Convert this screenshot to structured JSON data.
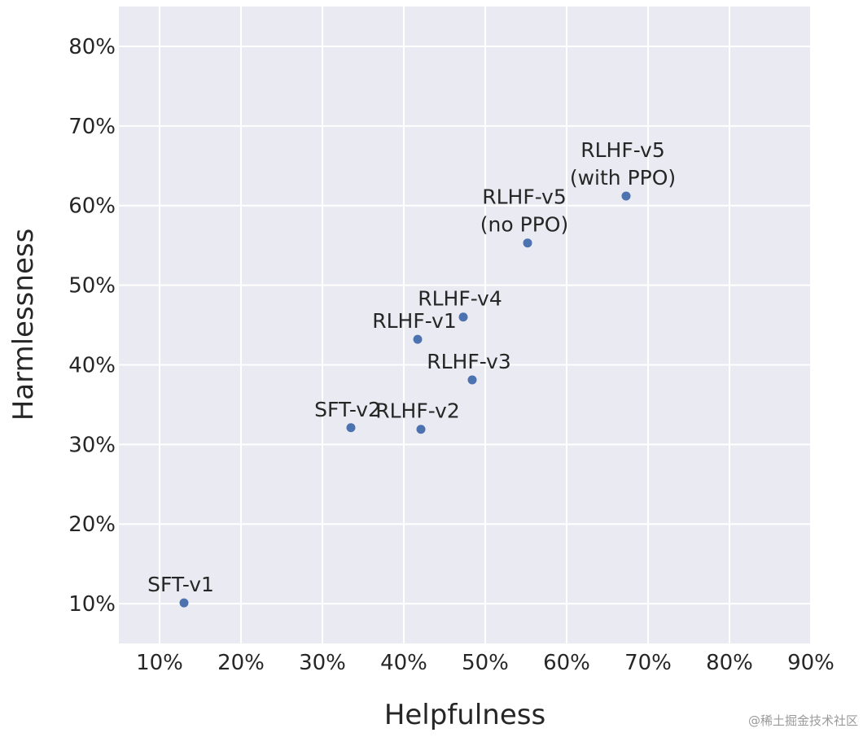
{
  "chart_data": {
    "type": "scatter",
    "title": "",
    "xlabel": "Helpfulness",
    "ylabel": "Harmlessness",
    "xlim": [
      5,
      90
    ],
    "ylim": [
      5,
      85
    ],
    "x_ticks": [
      10,
      20,
      30,
      40,
      50,
      60,
      70,
      80,
      90
    ],
    "y_ticks": [
      10,
      20,
      30,
      40,
      50,
      60,
      70,
      80
    ],
    "x_tick_labels": [
      "10%",
      "20%",
      "30%",
      "40%",
      "50%",
      "60%",
      "70%",
      "80%",
      "90%"
    ],
    "y_tick_labels": [
      "10%",
      "20%",
      "30%",
      "40%",
      "50%",
      "60%",
      "70%",
      "80%"
    ],
    "grid": true,
    "background_color": "#eaeaf2",
    "point_color": "#4c72b0",
    "points": [
      {
        "label": [
          "SFT-v1"
        ],
        "x": 13.0,
        "y": 10.1
      },
      {
        "label": [
          "SFT-v2"
        ],
        "x": 33.5,
        "y": 32.1
      },
      {
        "label": [
          "RLHF-v1"
        ],
        "x": 41.7,
        "y": 43.2
      },
      {
        "label": [
          "RLHF-v2"
        ],
        "x": 42.1,
        "y": 31.9
      },
      {
        "label": [
          "RLHF-v3"
        ],
        "x": 48.4,
        "y": 38.1
      },
      {
        "label": [
          "RLHF-v4"
        ],
        "x": 47.3,
        "y": 46.0
      },
      {
        "label": [
          "RLHF-v5",
          "(no PPO)"
        ],
        "x": 55.2,
        "y": 55.3
      },
      {
        "label": [
          "RLHF-v5",
          "(with PPO)"
        ],
        "x": 67.3,
        "y": 61.2
      }
    ]
  },
  "watermark": "@稀土掘金技术社区"
}
